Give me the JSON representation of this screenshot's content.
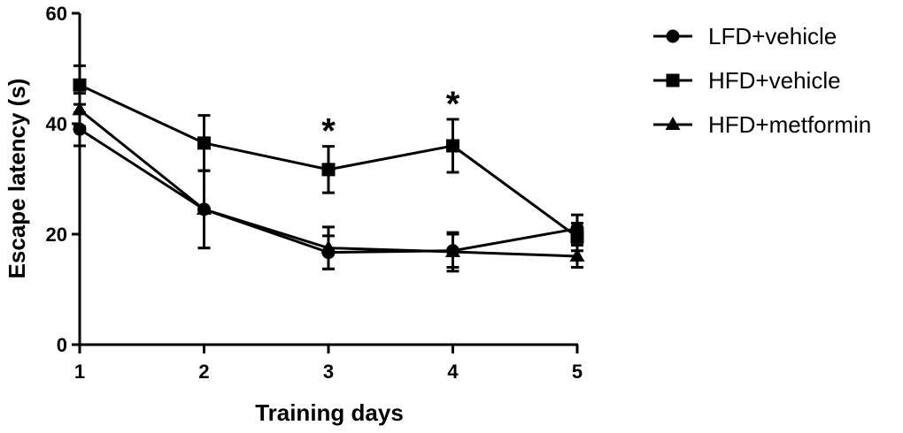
{
  "chart_data": {
    "type": "line",
    "title": "",
    "xlabel": "Training days",
    "ylabel": "Escape latency (s)",
    "x": [
      1,
      2,
      3,
      4,
      5
    ],
    "xlim": [
      1,
      5
    ],
    "ylim": [
      0,
      60
    ],
    "yticks": [
      0,
      20,
      40,
      60
    ],
    "xticks": [
      1,
      2,
      3,
      4,
      5
    ],
    "grid": false,
    "legend_position": "top-right",
    "series": [
      {
        "name": "LFD+vehicle",
        "marker": "circle",
        "values": [
          39,
          24.5,
          16.7,
          17,
          21
        ],
        "error": [
          3,
          7,
          3,
          3,
          2.5
        ]
      },
      {
        "name": "HFD+vehicle",
        "marker": "square",
        "values": [
          47,
          36.5,
          31.7,
          36,
          19.5
        ],
        "error": [
          3.5,
          5,
          4.2,
          4.8,
          2.5
        ]
      },
      {
        "name": "HFD+metformin",
        "marker": "triangle",
        "values": [
          42.5,
          24.5,
          17.5,
          16.8,
          16
        ],
        "error": [
          3,
          7,
          3.8,
          3.5,
          2
        ]
      }
    ],
    "annotations": [
      {
        "x": 3,
        "text": "*"
      },
      {
        "x": 4,
        "text": "*"
      }
    ]
  }
}
